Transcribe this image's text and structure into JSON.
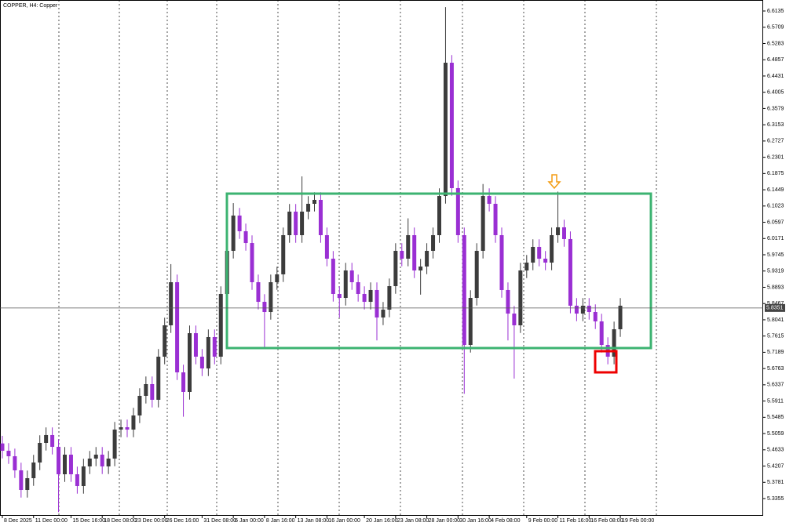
{
  "chart_data": {
    "type": "candlestick",
    "title": "COPPER, H4: Copper",
    "categories": [
      "8 Dec 2025",
      null,
      null,
      null,
      null,
      "11 Dec 00:00",
      null,
      null,
      null,
      null,
      null,
      "15 Dec 16:00",
      null,
      null,
      null,
      null,
      "18 Dec 08:00",
      null,
      null,
      null,
      null,
      "23 Dec 00:00",
      null,
      null,
      null,
      null,
      "26 Dec 16:00",
      null,
      null,
      null,
      null,
      null,
      "31 Dec 08:00",
      null,
      null,
      null,
      null,
      "6 Jan 00:00",
      null,
      null,
      null,
      null,
      "8 Jan 16:00",
      null,
      null,
      null,
      null,
      "13 Jan 08:00",
      null,
      null,
      null,
      null,
      "16 Jan 00:00",
      null,
      null,
      null,
      null,
      null,
      "20 Jan 16:00",
      null,
      null,
      null,
      null,
      "23 Jan 08:00",
      null,
      null,
      null,
      null,
      "28 Jan 00:00",
      null,
      null,
      null,
      null,
      "30 Jan 16:00",
      null,
      null,
      null,
      null,
      "4 Feb 08:00",
      null,
      null,
      null,
      null,
      null,
      "9 Feb 00:00",
      null,
      null,
      null,
      null,
      "11 Feb 16:00",
      null,
      null,
      null,
      null,
      "16 Feb 08:00",
      null,
      null,
      null,
      null,
      "19 Feb 00:00"
    ],
    "open": [
      5.48,
      5.4608,
      5.4464,
      5.4095,
      5.3581,
      5.3889,
      5.43,
      5.4814,
      5.502,
      5.4711,
      5.3992,
      5.4506,
      5.3992,
      5.3684,
      5.4198,
      5.4403,
      5.4506,
      5.4198,
      5.4403,
      5.5163,
      5.5225,
      5.5163,
      5.5533,
      5.6047,
      5.6355,
      5.5944,
      5.7074,
      5.7896,
      5.9026,
      5.6663,
      5.615,
      5.769,
      5.7074,
      5.6766,
      5.7588,
      5.7074,
      5.8718,
      5.9848,
      6.0773,
      6.0362,
      6.0053,
      5.9026,
      5.8512,
      5.8245,
      5.9026,
      5.9232,
      6.0259,
      6.0876,
      6.0259,
      6.0876,
      6.1081,
      6.1184,
      6.0259,
      5.9643,
      5.8718,
      5.8615,
      5.9334,
      5.9026,
      5.8718,
      5.8512,
      5.8821,
      5.8101,
      5.8307,
      5.8923,
      5.9848,
      5.9643,
      6.0259,
      5.9334,
      5.9437,
      5.9848,
      6.0259,
      6.1286,
      6.4779,
      6.1492,
      6.0259,
      5.7382,
      5.8615,
      5.9848,
      6.1286,
      6.1081,
      6.0259,
      5.8821,
      5.8204,
      5.7896,
      5.9334,
      5.954,
      5.9951,
      5.9643,
      5.954,
      6.0259,
      6.0465,
      6.0157,
      5.841,
      5.8204,
      5.841,
      5.8245,
      5.7999,
      5.7382,
      5.7074,
      5.7793
    ],
    "high": [
      5.5,
      5.4808,
      5.4664,
      5.4295,
      5.4089,
      5.45,
      5.5014,
      5.522,
      5.522,
      5.4911,
      5.4706,
      5.4706,
      5.4192,
      5.4398,
      5.4603,
      5.4706,
      5.4706,
      5.4603,
      5.5363,
      5.5425,
      5.5425,
      5.5733,
      5.6247,
      5.6555,
      5.6555,
      5.7274,
      5.8096,
      5.95,
      5.9226,
      5.6863,
      5.789,
      5.789,
      5.7274,
      5.7788,
      5.7788,
      5.8918,
      6.0048,
      6.11,
      6.0973,
      6.0562,
      6.0253,
      5.9226,
      5.8712,
      5.9226,
      5.9432,
      6.0459,
      6.1076,
      6.1076,
      6.18,
      6.1281,
      6.1384,
      6.1384,
      6.0459,
      5.9843,
      5.8918,
      5.9534,
      5.9534,
      5.9226,
      5.8918,
      5.9021,
      5.9021,
      5.8507,
      5.9123,
      6.0048,
      6.0048,
      6.07,
      6.0459,
      5.9637,
      6.0048,
      6.0459,
      6.1486,
      6.6235,
      6.4979,
      6.1692,
      6.0459,
      5.8815,
      6.0048,
      6.16,
      6.1486,
      6.1281,
      6.0459,
      5.9021,
      5.8404,
      5.9534,
      5.974,
      6.0151,
      6.0151,
      5.9843,
      6.0459,
      6.14,
      6.0665,
      6.0357,
      5.861,
      5.861,
      5.861,
      5.8445,
      5.8199,
      5.7582,
      5.7993,
      5.861
    ],
    "low": [
      5.4408,
      5.4264,
      5.3895,
      5.3381,
      5.3381,
      5.3689,
      5.41,
      5.4614,
      5.4511,
      5.3,
      5.3792,
      5.3792,
      5.3484,
      5.3484,
      5.3998,
      5.4203,
      5.3998,
      5.3998,
      5.4203,
      5.4963,
      5.4963,
      5.4963,
      5.5333,
      5.5847,
      5.5744,
      5.5744,
      5.6874,
      5.7696,
      5.6463,
      5.55,
      5.595,
      5.6874,
      5.6566,
      5.6566,
      5.6874,
      5.6874,
      5.8518,
      5.9648,
      6.0162,
      5.9853,
      5.8826,
      5.8312,
      5.73,
      5.8045,
      5.8826,
      5.9032,
      6.0059,
      6.0059,
      6.0059,
      6.0676,
      6.0881,
      6.0059,
      5.9443,
      5.8518,
      5.81,
      5.8415,
      5.8826,
      5.8518,
      5.8312,
      5.8312,
      5.75,
      5.7901,
      5.8107,
      5.8723,
      5.9443,
      5.9443,
      5.9134,
      5.87,
      5.9237,
      5.9648,
      6.0059,
      6.1086,
      6.1292,
      6.0059,
      5.61,
      5.7182,
      5.8415,
      5.9648,
      6.0881,
      6.0059,
      5.8621,
      5.75,
      5.65,
      5.7696,
      5.9134,
      5.934,
      5.9443,
      5.934,
      5.934,
      6.0059,
      5.9957,
      5.821,
      5.8004,
      5.8004,
      5.8045,
      5.7799,
      5.7182,
      5.6874,
      5.6874,
      5.7593
    ],
    "close": [
      5.4608,
      5.4464,
      5.4095,
      5.3581,
      5.3889,
      5.43,
      5.4814,
      5.502,
      5.4711,
      5.3992,
      5.4506,
      5.3992,
      5.3684,
      5.4198,
      5.4403,
      5.4506,
      5.4198,
      5.4403,
      5.5163,
      5.5225,
      5.5163,
      5.5533,
      5.6047,
      5.6355,
      5.5944,
      5.7074,
      5.7896,
      5.9026,
      5.6663,
      5.615,
      5.769,
      5.7074,
      5.6766,
      5.7588,
      5.7074,
      5.8718,
      5.9848,
      6.0773,
      6.0362,
      6.0053,
      5.9026,
      5.8512,
      5.8245,
      5.9026,
      5.9232,
      6.0259,
      6.0876,
      6.0259,
      6.0876,
      6.1081,
      6.1184,
      6.0259,
      5.9643,
      5.8718,
      5.8615,
      5.9334,
      5.9026,
      5.8718,
      5.8512,
      5.8821,
      5.8101,
      5.8307,
      5.8923,
      5.9848,
      5.9643,
      6.0259,
      5.9334,
      5.9437,
      5.9848,
      6.0259,
      6.1286,
      6.4779,
      6.1492,
      6.0259,
      5.7382,
      5.8615,
      5.9848,
      6.1286,
      6.1081,
      6.0259,
      5.8821,
      5.8204,
      5.7896,
      5.9334,
      5.954,
      5.9951,
      5.9643,
      5.954,
      6.0259,
      6.0465,
      6.0157,
      5.841,
      5.8204,
      5.841,
      5.8245,
      5.7999,
      5.7382,
      5.7074,
      5.7793,
      5.841
    ],
    "up_color": "#3c3c3c",
    "down_color": "#9a2fd3",
    "last_price": 5.8351,
    "ylim": [
      5.2903,
      6.6423
    ],
    "yticks": [
      5.3355,
      5.3781,
      5.4207,
      5.4633,
      5.5059,
      5.5485,
      5.5911,
      5.6337,
      5.6763,
      5.7189,
      5.7615,
      5.8041,
      5.8467,
      5.8893,
      5.9319,
      5.9745,
      6.0171,
      6.0597,
      6.1023,
      6.1449,
      6.1875,
      6.2301,
      6.2727,
      6.3153,
      6.3579,
      6.4005,
      6.4431,
      6.4857,
      6.5283,
      6.5709,
      6.6135
    ]
  }
}
